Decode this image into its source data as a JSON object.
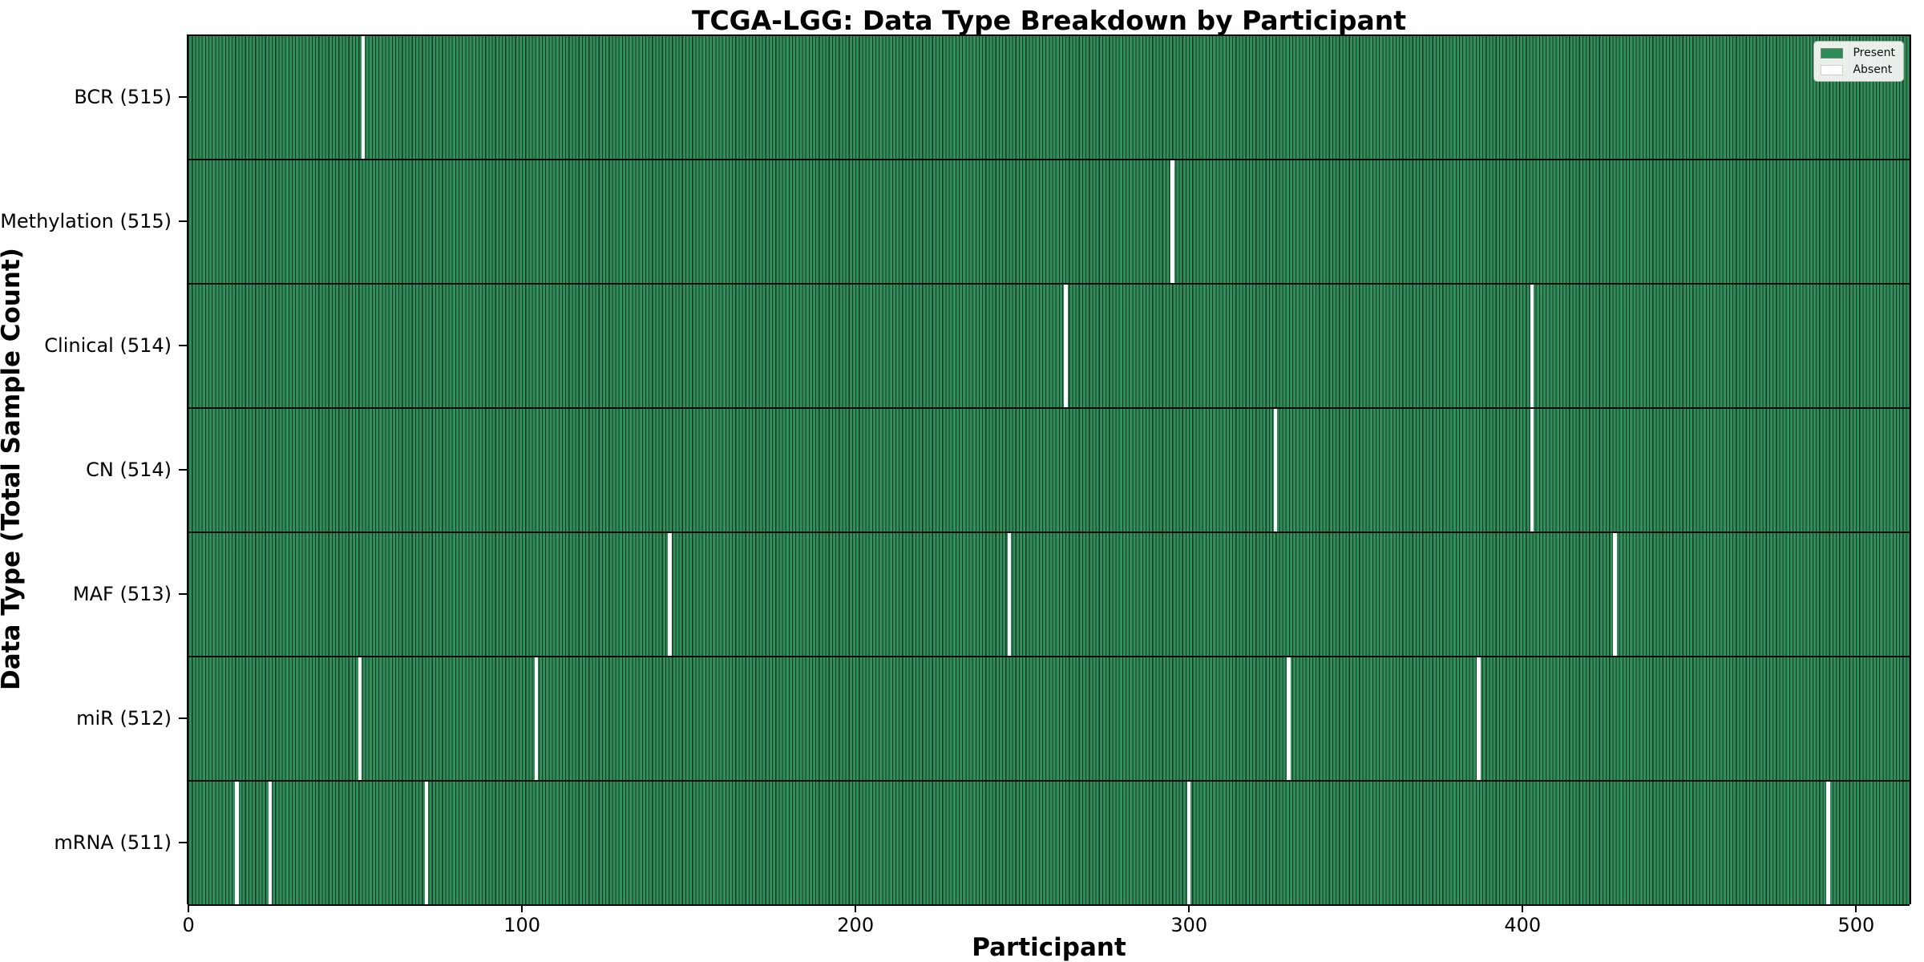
{
  "chart_data": {
    "type": "heatmap",
    "title": "TCGA-LGG: Data Type Breakdown by Participant",
    "xlabel": "Participant",
    "ylabel": "Data Type (Total Sample Count)",
    "x_ticks": [
      0,
      100,
      200,
      300,
      400,
      500
    ],
    "axis": {
      "xmin": -0.5,
      "xmax": 516.5,
      "total_units": 517
    },
    "n_participants": 516,
    "colors": {
      "present": "#2e8b57",
      "present_edge": "#163826",
      "absent": "#ffffff"
    },
    "legend": [
      {
        "label": "Present",
        "color": "#2e8b57"
      },
      {
        "label": "Absent",
        "color": "#ffffff"
      }
    ],
    "rows": [
      {
        "label": "BCR (515)",
        "data_type": "BCR",
        "present_count": 515,
        "absent_participants": [
          52
        ]
      },
      {
        "label": "Methylation (515)",
        "data_type": "Methylation",
        "present_count": 515,
        "absent_participants": [
          295
        ]
      },
      {
        "label": "Clinical (514)",
        "data_type": "Clinical",
        "present_count": 514,
        "absent_participants": [
          263,
          403
        ]
      },
      {
        "label": "CN (514)",
        "data_type": "CN",
        "present_count": 514,
        "absent_participants": [
          326,
          403
        ]
      },
      {
        "label": "MAF (513)",
        "data_type": "MAF",
        "present_count": 513,
        "absent_participants": [
          144,
          246,
          428
        ]
      },
      {
        "label": "miR (512)",
        "data_type": "miR",
        "present_count": 512,
        "absent_participants": [
          51,
          104,
          330,
          387
        ]
      },
      {
        "label": "mRNA (511)",
        "data_type": "mRNA",
        "present_count": 511,
        "absent_participants": [
          14,
          24,
          71,
          300,
          492
        ]
      }
    ]
  }
}
